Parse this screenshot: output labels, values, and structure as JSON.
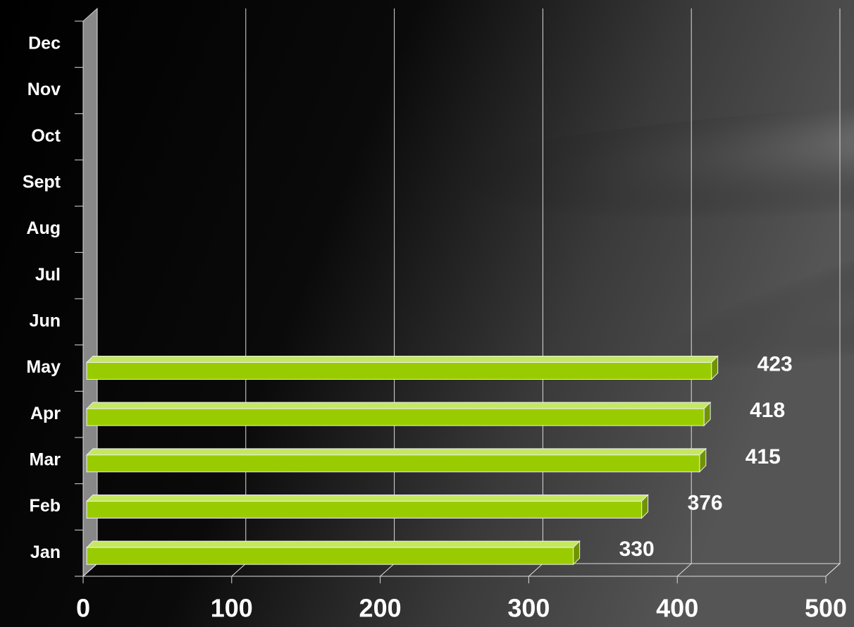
{
  "chart_data": {
    "type": "bar",
    "orientation": "horizontal",
    "categories": [
      "Jan",
      "Feb",
      "Mar",
      "Apr",
      "May",
      "Jun",
      "Jul",
      "Aug",
      "Sept",
      "Oct",
      "Nov",
      "Dec"
    ],
    "values": [
      330,
      376,
      415,
      418,
      423,
      null,
      null,
      null,
      null,
      null,
      null,
      null
    ],
    "color": "#99cc00",
    "xlim": [
      0,
      500
    ],
    "xticks": [
      0,
      100,
      200,
      300,
      400,
      500
    ],
    "grid": true
  }
}
